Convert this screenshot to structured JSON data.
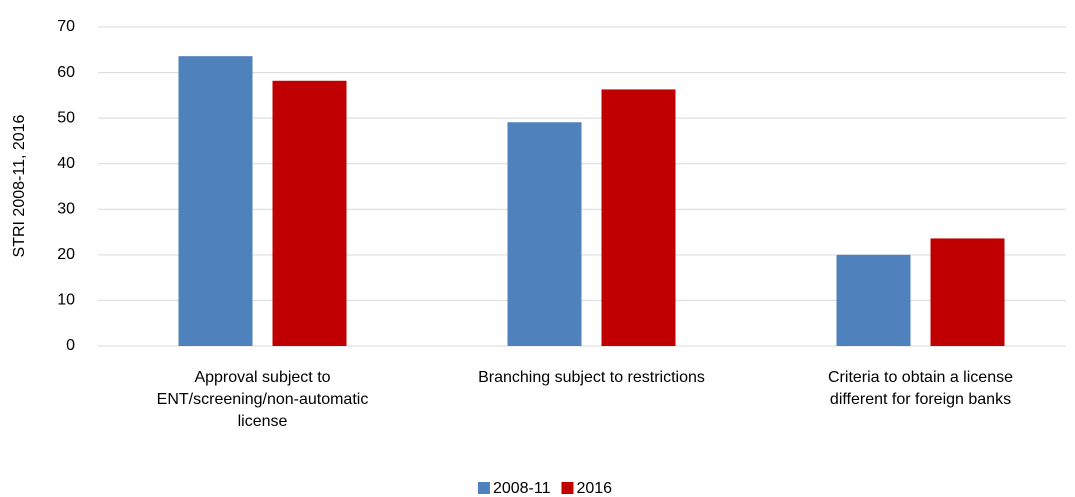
{
  "chart_data": {
    "type": "bar",
    "y_label": "STRI 2008-11, 2016",
    "categories": [
      "Approval subject to ENT/screening/non-automatic license",
      "Branching subject to restrictions",
      "Criteria to obtain a license different for foreign banks"
    ],
    "series": [
      {
        "name": "2008-11",
        "color": "#4f81bd",
        "values": [
          63.6,
          49.1,
          20.0
        ]
      },
      {
        "name": "2016",
        "color": "#c00000",
        "values": [
          58.2,
          56.3,
          23.6
        ]
      }
    ],
    "ylim": [
      0,
      70
    ],
    "yticks": [
      0,
      10,
      20,
      30,
      40,
      50,
      60,
      70
    ],
    "grid": true,
    "legend": "bottom"
  }
}
